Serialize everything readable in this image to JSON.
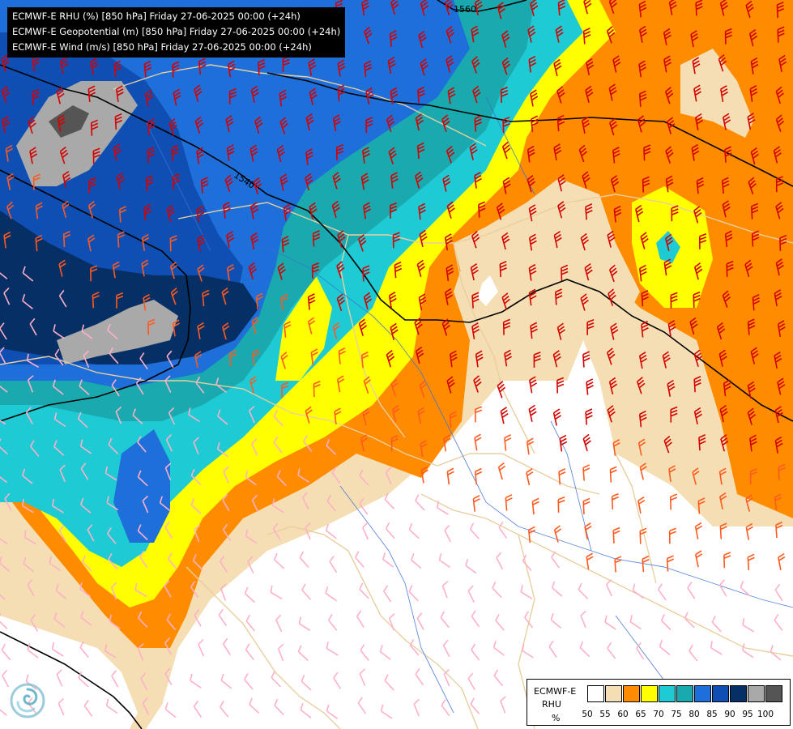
{
  "title_lines": [
    "ECMWF-E RHU (%) [850 hPa] Friday 27-06-2025 00:00 (+24h)",
    "ECMWF-E Geopotential (m) [850 hPa] Friday 27-06-2025 00:00 (+24h)",
    "ECMWF-E Wind (m/s) [850 hPa] Friday 27-06-2025 00:00 (+24h)"
  ],
  "contour_labels": [
    "1560",
    "1540"
  ],
  "legend": {
    "model": "ECMWF-E",
    "variable": "RHU",
    "unit": "%",
    "ticks": [
      "50",
      "55",
      "60",
      "65",
      "70",
      "75",
      "80",
      "85",
      "90",
      "95",
      "100"
    ],
    "colors": [
      "#ffffff",
      "#f5deb3",
      "#ff8c00",
      "#ffff00",
      "#1ecad3",
      "#19a9ae",
      "#1e6fd9",
      "#0f4fb4",
      "#062f66",
      "#a9a9a9",
      "#555555"
    ]
  },
  "colors": {
    "land_white": "#ffffff",
    "wheat": "#f5deb3",
    "orange": "#ff8c00",
    "yellow": "#ffff00",
    "cyan": "#1ecad3",
    "teal": "#19a9ae",
    "blue": "#1e6fd9",
    "mid_blue": "#0f4fb4",
    "navy": "#062f66",
    "grey": "#a9a9a9",
    "dark_grey": "#555555",
    "wind_red": "#d40000",
    "wind_orange": "#ff5a1e",
    "wind_pink": "#ffb0c8",
    "borders": "#e8cfa0",
    "rivers": "#3b6fd0",
    "geopotential": "#000000"
  },
  "logo_icon": "ecmwf-swirl-icon"
}
